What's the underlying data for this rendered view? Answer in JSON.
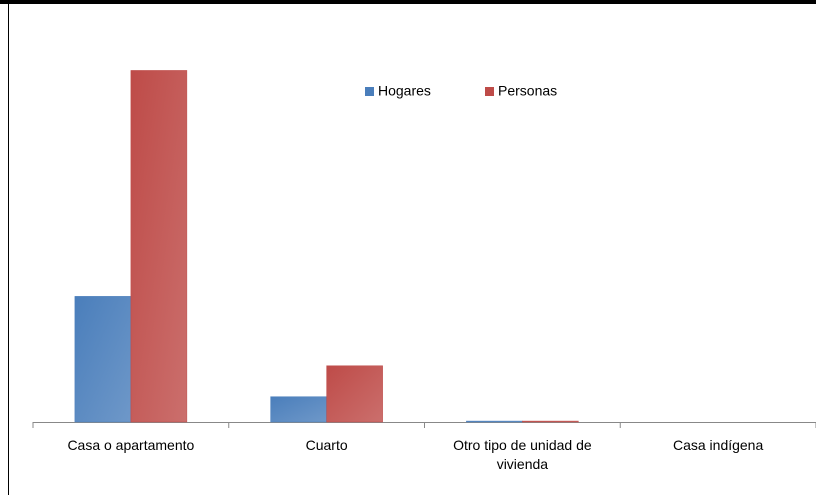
{
  "chart_data": {
    "type": "bar",
    "categories": [
      "Casa o apartamento",
      "Cuarto",
      "Otro tipo de unidad de vivienda",
      "Casa indígena"
    ],
    "series": [
      {
        "name": "Hogares",
        "color": "#4a7ebb",
        "values": [
          134,
          27,
          1,
          0
        ]
      },
      {
        "name": "Personas",
        "color": "#be4b48",
        "values": [
          375,
          60,
          1,
          0
        ]
      }
    ],
    "ylim": [
      0,
      400
    ],
    "legend": "top"
  }
}
